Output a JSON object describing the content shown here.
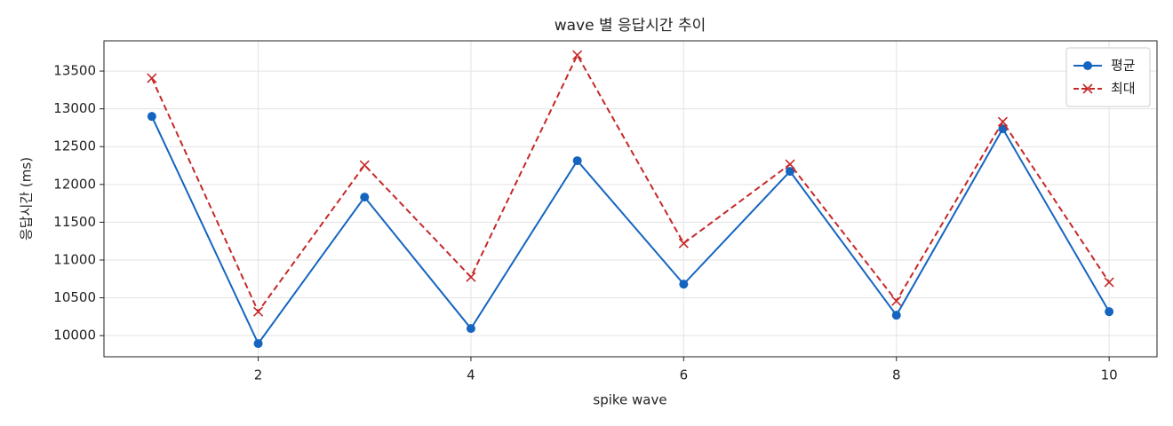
{
  "chart_data": {
    "type": "line",
    "title": "wave 별 응답시간 추이",
    "xlabel": "spike wave",
    "ylabel": "응답시간 (ms)",
    "x": [
      1,
      2,
      3,
      4,
      5,
      6,
      7,
      8,
      9,
      10
    ],
    "series": [
      {
        "name": "평균",
        "color": "#1565c0",
        "marker": "circle",
        "linestyle": "solid",
        "values": [
          12900,
          9895,
          11832,
          10094,
          12314,
          10681,
          12173,
          10270,
          12736,
          10317
        ]
      },
      {
        "name": "최대",
        "color": "#c62828",
        "marker": "x",
        "linestyle": "dashed",
        "values": [
          13406,
          10317,
          12255,
          10775,
          13711,
          11221,
          12267,
          10458,
          12830,
          10705
        ]
      }
    ],
    "xlim": [
      0.55,
      10.45
    ],
    "ylim": [
      9720,
      13900
    ],
    "xticks": [
      2,
      4,
      6,
      8,
      10
    ],
    "yticks": [
      10000,
      10500,
      11000,
      11500,
      12000,
      12500,
      13000,
      13500
    ],
    "grid": true,
    "legend": "upper right"
  }
}
